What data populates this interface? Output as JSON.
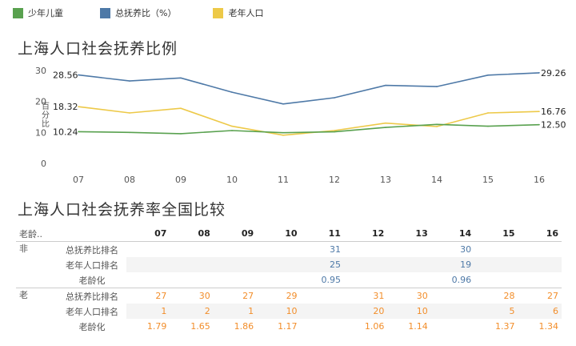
{
  "legend": [
    {
      "label": "少年儿童",
      "color": "#59a14f"
    },
    {
      "label": "总抚养比（%）",
      "color": "#4e79a7"
    },
    {
      "label": "老年人口",
      "color": "#edc948"
    }
  ],
  "chart_title": "上海人口社会抚养比例",
  "table_title": "上海人口社会抚养率全国比较",
  "chart_data": {
    "type": "line",
    "title": "上海人口社会抚养比例",
    "xlabel": "",
    "ylabel": "百分比",
    "x": [
      "07",
      "08",
      "09",
      "10",
      "11",
      "12",
      "13",
      "14",
      "15",
      "16"
    ],
    "yticks": [
      0,
      10,
      20,
      30
    ],
    "ylim": [
      0,
      31
    ],
    "grid": false,
    "series": [
      {
        "name": "总抚养比（%）",
        "color": "#4e79a7",
        "values": [
          28.56,
          26.6,
          27.6,
          23.0,
          19.2,
          21.2,
          25.2,
          24.8,
          28.5,
          29.26
        ],
        "first_label": "28.56",
        "last_label": "29.26"
      },
      {
        "name": "老年人口",
        "color": "#edc948",
        "values": [
          18.32,
          16.3,
          17.8,
          12.0,
          9.1,
          10.6,
          13.0,
          11.9,
          16.3,
          16.76
        ],
        "first_label": "18.32",
        "last_label": "16.76"
      },
      {
        "name": "少年儿童",
        "color": "#59a14f",
        "values": [
          10.24,
          10.0,
          9.6,
          10.6,
          9.9,
          10.2,
          11.6,
          12.6,
          12.0,
          12.5
        ],
        "first_label": "10.24",
        "last_label": "12.50"
      }
    ]
  },
  "table": {
    "header_first": "老龄..",
    "years": [
      "07",
      "08",
      "09",
      "10",
      "11",
      "12",
      "13",
      "14",
      "15",
      "16"
    ],
    "groups": [
      {
        "label": "非",
        "color": "#4e79a7",
        "rows": [
          {
            "label": "总抚养比排名",
            "values": [
              "",
              "",
              "",
              "",
              "31",
              "",
              "",
              "30",
              "",
              ""
            ]
          },
          {
            "label": "老年人口排名",
            "values": [
              "",
              "",
              "",
              "",
              "25",
              "",
              "",
              "19",
              "",
              ""
            ]
          },
          {
            "label": "老龄化",
            "values": [
              "",
              "",
              "",
              "",
              "0.95",
              "",
              "",
              "0.96",
              "",
              ""
            ]
          }
        ]
      },
      {
        "label": "老",
        "color": "#f28e2b",
        "rows": [
          {
            "label": "总抚养比排名",
            "values": [
              "27",
              "30",
              "27",
              "29",
              "",
              "31",
              "30",
              "",
              "28",
              "27"
            ]
          },
          {
            "label": "老年人口排名",
            "values": [
              "1",
              "2",
              "1",
              "10",
              "",
              "20",
              "10",
              "",
              "5",
              "6"
            ]
          },
          {
            "label": "老龄化",
            "values": [
              "1.79",
              "1.65",
              "1.86",
              "1.17",
              "",
              "1.06",
              "1.14",
              "",
              "1.37",
              "1.34"
            ]
          }
        ]
      }
    ]
  }
}
